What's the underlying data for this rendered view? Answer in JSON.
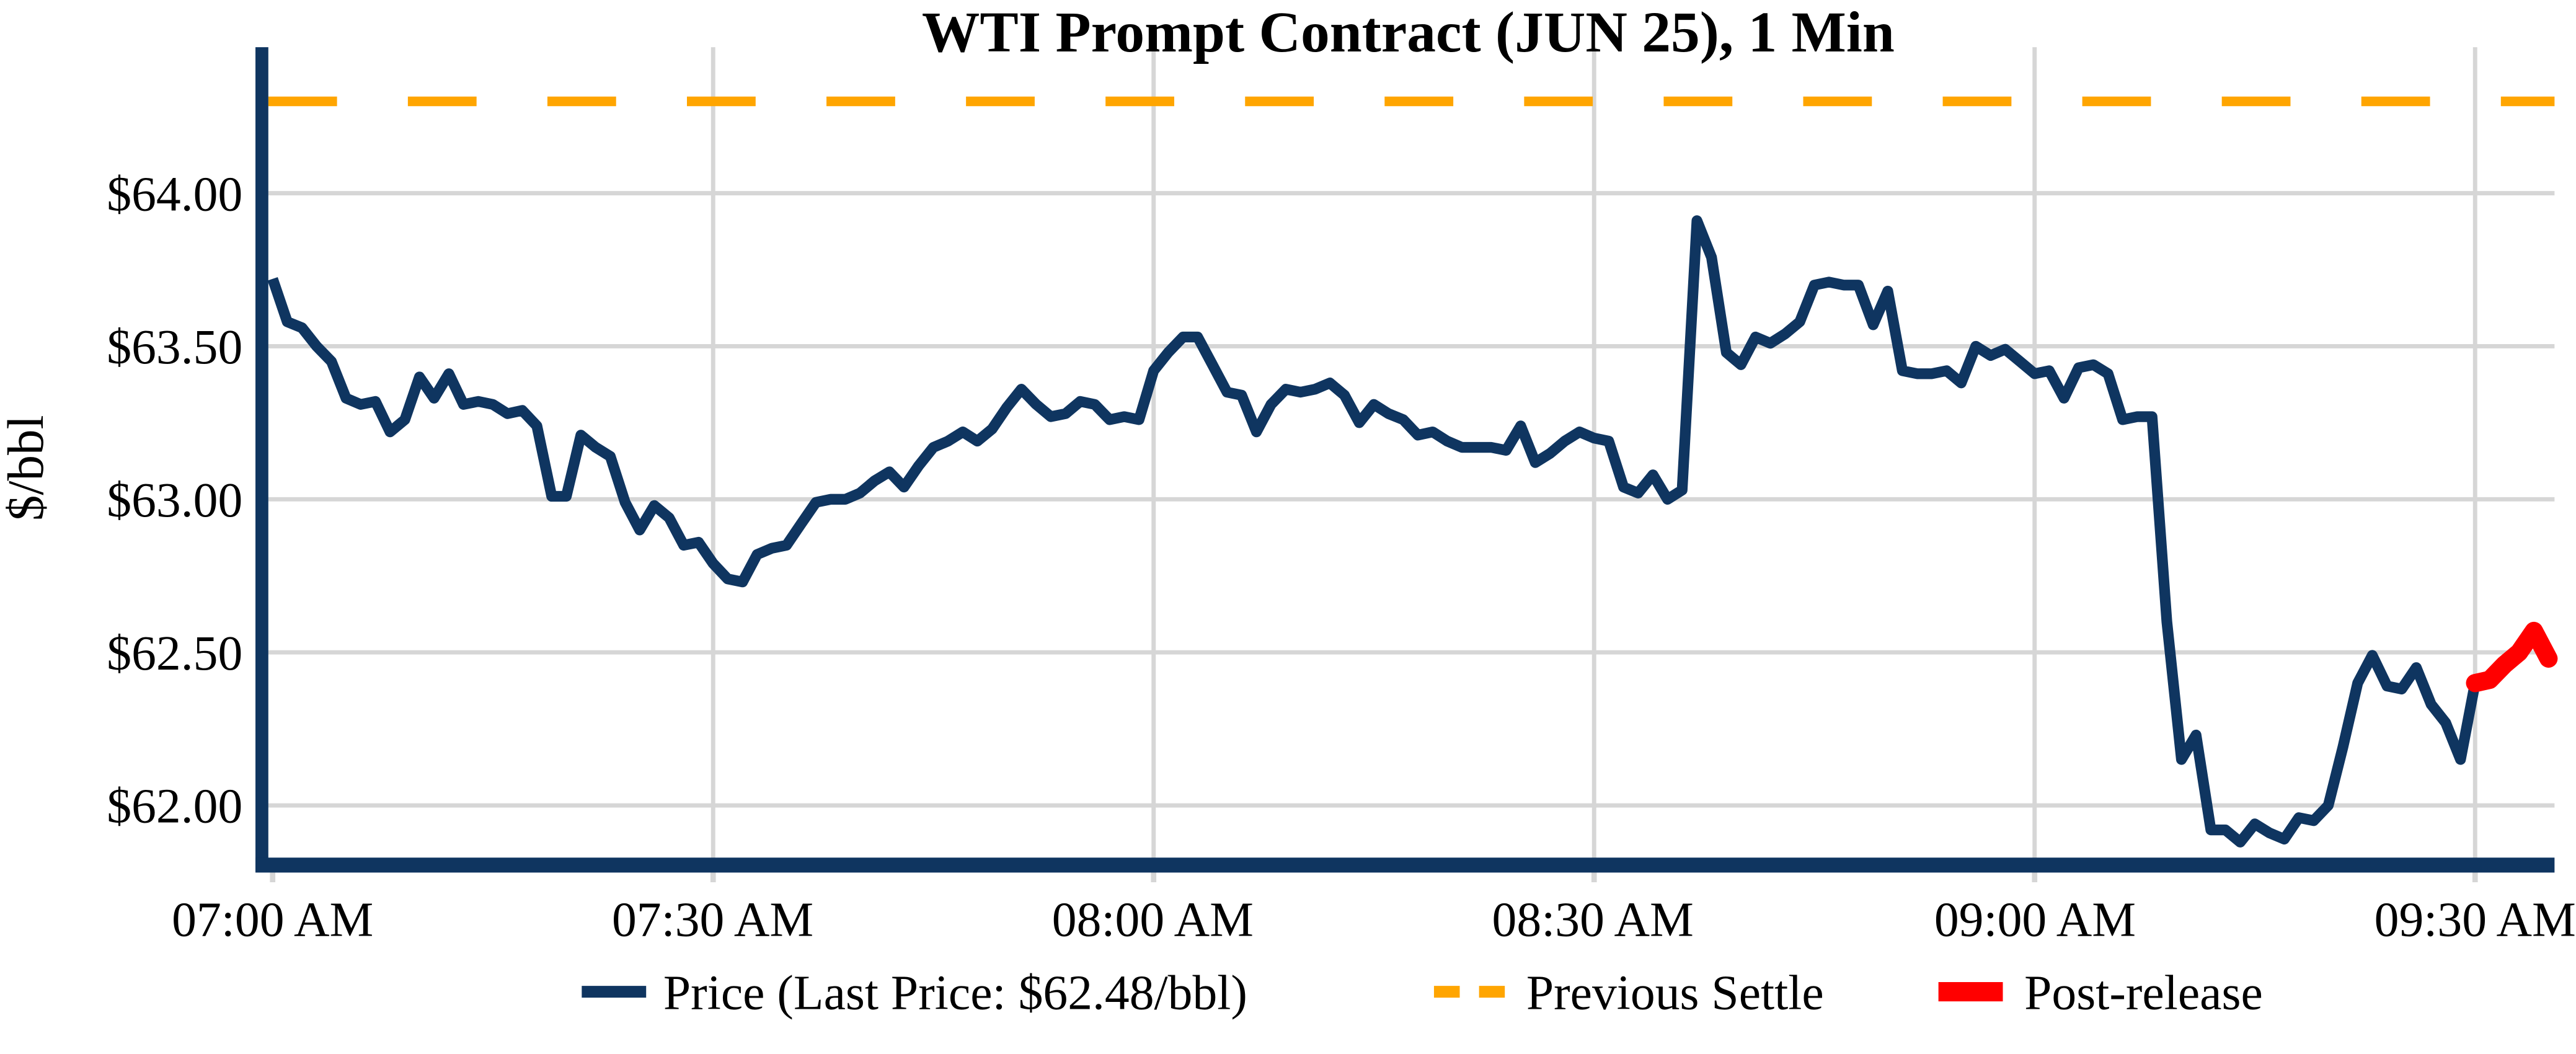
{
  "chart_data": {
    "type": "line",
    "title": "WTI Prompt Contract (JUN 25), 1 Min",
    "ylabel": "$/bbl",
    "xlabel": "",
    "x_ticks": [
      "07:00 AM",
      "07:30 AM",
      "08:00 AM",
      "08:30 AM",
      "09:00 AM",
      "09:30 AM"
    ],
    "x_tick_minutes": [
      0,
      30,
      60,
      90,
      120,
      150
    ],
    "y_ticks": [
      "$64.00",
      "$63.50",
      "$63.00",
      "$62.50",
      "$62.00"
    ],
    "y_tick_values": [
      64.0,
      63.5,
      63.0,
      62.5,
      62.0
    ],
    "ylim": [
      61.8,
      64.48
    ],
    "x_range_minutes": [
      0,
      155
    ],
    "grid": true,
    "legend_position": "bottom",
    "previous_settle": 64.3,
    "last_price": 62.48,
    "post_release_start_minute": 150,
    "minutes_per_point": 1,
    "price_by_minute": [
      63.72,
      63.58,
      63.56,
      63.5,
      63.45,
      63.33,
      63.31,
      63.32,
      63.22,
      63.26,
      63.4,
      63.33,
      63.41,
      63.31,
      63.32,
      63.31,
      63.28,
      63.29,
      63.24,
      63.01,
      63.01,
      63.21,
      63.17,
      63.14,
      62.99,
      62.9,
      62.98,
      62.94,
      62.85,
      62.86,
      62.79,
      62.74,
      62.73,
      62.82,
      62.84,
      62.85,
      62.92,
      62.99,
      63.0,
      63.0,
      63.02,
      63.06,
      63.09,
      63.04,
      63.11,
      63.17,
      63.19,
      63.22,
      63.19,
      63.23,
      63.3,
      63.36,
      63.31,
      63.27,
      63.28,
      63.32,
      63.31,
      63.26,
      63.27,
      63.26,
      63.42,
      63.48,
      63.53,
      63.53,
      63.44,
      63.35,
      63.34,
      63.22,
      63.31,
      63.36,
      63.35,
      63.36,
      63.38,
      63.34,
      63.25,
      63.31,
      63.28,
      63.26,
      63.21,
      63.22,
      63.19,
      63.17,
      63.17,
      63.17,
      63.16,
      63.24,
      63.12,
      63.15,
      63.19,
      63.22,
      63.2,
      63.19,
      63.04,
      63.02,
      63.08,
      63.0,
      63.03,
      63.91,
      63.79,
      63.48,
      63.44,
      63.53,
      63.51,
      63.54,
      63.58,
      63.7,
      63.71,
      63.7,
      63.7,
      63.57,
      63.68,
      63.42,
      63.41,
      63.41,
      63.42,
      63.38,
      63.5,
      63.47,
      63.49,
      63.45,
      63.41,
      63.42,
      63.33,
      63.43,
      63.44,
      63.41,
      63.26,
      63.27,
      63.27,
      62.6,
      62.15,
      62.23,
      61.92,
      61.92,
      61.88,
      61.94,
      61.91,
      61.89,
      61.96,
      61.95,
      62.0,
      62.19,
      62.4,
      62.49,
      62.39,
      62.38,
      62.45,
      62.33,
      62.27,
      62.15,
      62.4,
      62.41,
      62.46,
      62.5,
      62.57,
      62.48
    ],
    "legend": [
      {
        "label": "Price (Last Price: $62.48/bbl)",
        "color": "#0F3560",
        "style": "solid"
      },
      {
        "label": "Previous Settle",
        "color": "#FFA500",
        "style": "dashed"
      },
      {
        "label": "Post-release",
        "color": "#FF0000",
        "style": "thick"
      }
    ],
    "colors": {
      "price": "#0F3560",
      "previous_settle": "#FFA500",
      "post_release": "#FF0000",
      "grid": "#D6D6D6",
      "axis": "#0F3560",
      "background": "#FFFFFF"
    }
  }
}
